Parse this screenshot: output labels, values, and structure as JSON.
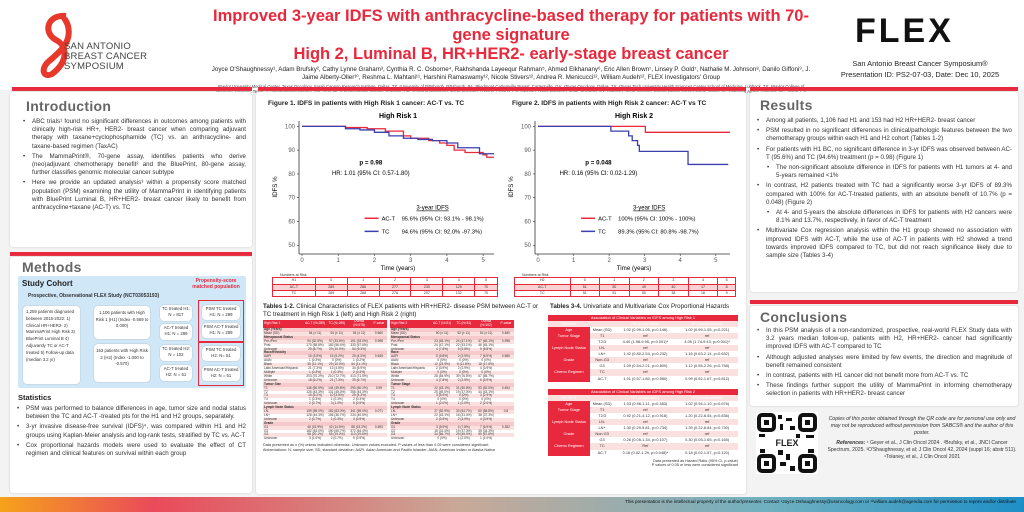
{
  "header": {
    "title_line1": "Improved 3-year IDFS with anthracycline-based therapy for patients with 70-gene signature",
    "title_line2": "High 2, Luminal B, HR+HER2- early-stage breast cancer",
    "authors": "Joyce O'Shaughnessy¹, Adam Brufsky², Cathy Lynne Graham³, Cynthia R. C. Osborne⁴, Rakhshanda Layeequr Rahman⁵, Ahmed Elkhanany⁶, Eric Allen Brown⁷, Linsey P. Gold⁷, Nathalie M. Johnson⁸, Danilo Giffoni⁹, J. Jaime Alberty-Oller¹⁰, Reshma L. Mahtani¹¹, Harshini Ramaswamy¹², Nicole Stivers¹², Andrea R. Menicucci¹², William Audeh¹², FLEX Investigators' Group",
    "affiliations": "¹Baylor University Medical Center, Texas Oncology, Sarah Cannon Research Institute, Dallas, TX; ²University of Pittsburgh, Pittsburgh, PA; ³Piedmont Cartersville Breast, Cartersville, GA; ⁴Texas Oncology, Dallas, TX; ⁵Texas Tech University Health Sciences Center School of Medicine, Lubbock, TX; ⁶Baylor College of Medicine, Houston, Texas; ⁷Comprehensive Breast Care, Troy, MI; ⁸Legacy Health System, Portland, OR; ⁹London Regional Cancer Program, London, Ontario, CA; ¹⁰Kings County Hospital Center, Brooklyn, NY; ¹¹Miami Cancer Institute, Baptist Health South Florida, Miami, FL; ¹²Medical Affairs, Agendia, Inc., Irvine, CA",
    "left_logo_text": "SAN ANTONIO BREAST CANCER SYMPOSIUM",
    "right_logo_text": "FLEX",
    "conference": "San Antonio Breast Cancer Symposium®",
    "presentation": "Presentation ID: PS2-07-03, Date: Dec 10, 2025",
    "brand_red": "#e8283c"
  },
  "intro": {
    "title": "Introduction",
    "bullets": [
      "ABC trials¹ found no significant differences in outcomes among patients with clinically high-risk HR+, HER2- breast cancer when comparing adjuvant therapy with taxane+cyclophosphamide (TC) vs. an anthracycline- and taxane-based regimen (TaxAC)",
      "The MammaPrint®, 70-gene assay, identifies patients who derive (neo)adjuvant chemotherapy benefit² and the BluePrint, 80-gene assay, further classifies genomic molecular cancer subtype",
      "Here we provide an updated analysis³ within a propensity score matched population (PSM) examining the utility of MammaPrint in identifying patients with BluePrint Luminal B, HR+HER2- breast cancer likely to benefit from anthracycline+taxane (AC-T) vs. TC"
    ]
  },
  "methods": {
    "title": "Methods",
    "cohort_title": "Study Cohort",
    "study": "Prospective, Observational FLEX Study (NCT03053193)",
    "psm_label": "Propensity-score matched population",
    "criteria": "1,259 patients diagnosed between 2015-2022: 1) Clinical HR+HER2- 2) MammaPrint High Risk 3) BluePrint Luminal B 4) Adjuvantly TC or AC-T treated 5) Follow-up data (median 3.2 yr)",
    "h1": "1,106 patients with High Risk 1 (H1) (Index -0.569 to 0.000)",
    "h2": "153 patients with High Risk 2 (H2) (Index -1.000 to -0.570)",
    "h1_tc": "TC treated H1: N = 817",
    "h1_act": "AC-T treated H1: N = 289",
    "h2_tc": "TC treated H2: N = 102",
    "h2_act": "AC-T treated H2: N = 51",
    "psm_h1_tc": "PSM TC treated H1: N = 289",
    "psm_h1_act": "PSM AC-T treated H1: N = 289",
    "psm_h2_tc": "PSM TC treated H2: N= 51",
    "psm_h2_act": "PSM AC-T treated H2: N = 51",
    "stats_title": "Statistics",
    "stats": [
      "PSM was performed to balance differences in age, tumor size and nodal status between the TC and AC-T -treated pts for the H1 and H2 groups, separately.",
      "3-yr invasive disease-free survival (IDFS)⁴, was compared within H1 and H2 groups using Kaplan-Meier analysis and log-rank tests, stratified by TC vs. AC-T",
      "Cox proportional hazards models were used to evaluate the effect of CT regimen and clinical features on survival within each group"
    ]
  },
  "chart_data": [
    {
      "type": "line",
      "figure_title": "Figure 1. IDFS in patients with High Risk 1 cancer: AC-T vs. TC",
      "title": "High Risk 1",
      "xlabel": "Time (years)",
      "ylabel": "IDFS %",
      "xlim": [
        0,
        5.3
      ],
      "ylim": [
        48,
        101
      ],
      "xticks": [
        0,
        1,
        2,
        3,
        4,
        5
      ],
      "yticks": [
        50,
        60,
        70,
        80,
        90,
        100
      ],
      "p_value": "p = 0.98",
      "hr": "HR: 1.01 (95% CI: 0.57-1.80)",
      "legend_title": "3-year IDFS",
      "series": [
        {
          "name": "AC-T",
          "label": "95.6% (95% CI: 93.1% - 98.1%)",
          "color": "#e8283c",
          "x": [
            0,
            0.8,
            1.2,
            1.8,
            2.3,
            2.8,
            3.0,
            3.5,
            3.8,
            4.0,
            4.2,
            4.5,
            4.8,
            5.0,
            5.1,
            5.3
          ],
          "y": [
            100,
            100,
            99.5,
            99,
            98,
            96,
            95,
            94,
            93,
            92,
            90,
            89,
            89,
            88,
            87,
            87
          ]
        },
        {
          "name": "TC",
          "label": "94.6% (95% CI: 92.0% -97.3%)",
          "color": "#3b3fb0",
          "x": [
            0,
            1.0,
            1.2,
            1.6,
            2.0,
            2.4,
            2.8,
            3.2,
            3.6,
            4.0,
            4.3,
            4.8,
            4.9,
            5.3
          ],
          "y": [
            100,
            100,
            99,
            98.5,
            97.5,
            96,
            95,
            94.5,
            94,
            93,
            91,
            91,
            88.5,
            88.5
          ]
        }
      ],
      "risk_table": {
        "caption": "Numbers at Risk",
        "header": [
          "H1",
          "0",
          "1",
          "2",
          "3",
          "4",
          "5"
        ],
        "rows": [
          [
            "AC-T",
            "289",
            "286",
            "277",
            "230",
            "129",
            "70"
          ],
          [
            "TC",
            "289",
            "288",
            "276",
            "207",
            "132",
            "70"
          ]
        ]
      }
    },
    {
      "type": "line",
      "figure_title": "Figure 2.  IDFS in patients with High Risk 2 cancer: AC-T vs TC",
      "title": "High Risk 2",
      "xlabel": "Time (years)",
      "ylabel": "IDFS %",
      "xlim": [
        0,
        5.4
      ],
      "ylim": [
        48,
        101
      ],
      "xticks": [
        0,
        1,
        2,
        3,
        4,
        5
      ],
      "yticks": [
        50,
        60,
        70,
        80,
        90,
        100
      ],
      "p_value": "p = 0.048",
      "hr": "HR: 0.16 (95% CI: 0.02-1.29)",
      "legend_title": "3-year IDFS",
      "series": [
        {
          "name": "AC-T",
          "label": "100% (95% CI: 100% - 100%)",
          "color": "#e8283c",
          "x": [
            0,
            3.02,
            3.02,
            5.4
          ],
          "y": [
            100,
            100,
            97.5,
            97.5
          ]
        },
        {
          "name": "TC",
          "label": "89.3% (95% CI: 80.8% -98.7%)",
          "color": "#3b3fb0",
          "x": [
            0,
            2.05,
            2.05,
            2.5,
            2.55,
            2.65,
            2.8,
            2.85,
            4.2,
            4.22,
            5.35
          ],
          "y": [
            100,
            100,
            98,
            98,
            96,
            94,
            92,
            89.5,
            89.5,
            84,
            84
          ]
        }
      ],
      "risk_table": {
        "caption": "Numbers at Risk",
        "header": [
          "H2",
          "0",
          "1",
          "2",
          "3",
          "4",
          "5"
        ],
        "rows": [
          [
            "AC-T",
            "51",
            "50",
            "49",
            "40",
            "17",
            "8"
          ],
          [
            "TC",
            "51",
            "51",
            "50",
            "38",
            "16",
            "9"
          ]
        ]
      }
    }
  ],
  "tables12": {
    "title_bold": "Tables 1-2.",
    "title": " Clinical Characteristics of FLEX patients with HR+HER2- disease PSM between AC-T or TC treatment in High Risk 1 (left) and High Risk 2 (right)",
    "t1": [
      [
        "High Risk 1",
        "AC-T (N=289)",
        "TC (N=289)",
        "Overall (N=578)",
        "P-value"
      ],
      [
        "Age (Years)"
      ],
      [
        "Mean (SD)",
        "54 (± 11)",
        "54 (± 11)",
        "54 (± 11)",
        "0.660"
      ],
      [
        "Menopausal Status"
      ],
      [
        "Pre-/Peri",
        "94 (32.5%)",
        "97 (33.6%)",
        "191 (33.0%)",
        "0.998"
      ],
      [
        "Post",
        "170 (58.8%)",
        "163 (56.4%)",
        "333 (57.6%)",
        ""
      ],
      [
        "Unknown",
        "25 (8.7%)",
        "29 (10.0%)",
        "54 (9.3%)",
        ""
      ],
      [
        "Race/Ethnicity"
      ],
      [
        "AAPI",
        "10 (3.5%)",
        "15 (5.2%)",
        "25 (4.3%)",
        "0.645"
      ],
      [
        "AIAN",
        "1 (0.3%)",
        "0 (0%)",
        "1 (0.2%)",
        ""
      ],
      [
        "Black",
        "35 (12.1%)",
        "29 (10.0%)",
        "64 (11.1%)",
        ""
      ],
      [
        "Latin American/Hispanic",
        "21 (7.3%)",
        "13 (4.5%)",
        "34 (5.9%)",
        ""
      ],
      [
        "Multiple",
        "1 (0.3%)",
        "1 (0.3%)",
        "2 (0.3%)",
        ""
      ],
      [
        "White",
        "203 (70.2%)",
        "210 (72.7%)",
        "413 (71.5%)",
        ""
      ],
      [
        "Unknown",
        "18 (6.2%)",
        "21 (7.3%)",
        "39 (6.7%)",
        ""
      ],
      [
        "Tumor Size"
      ],
      [
        "T1",
        "146 (50.5%)",
        "144 (49.8%)",
        "290 (50.2%)",
        "0.99"
      ],
      [
        "T2",
        "125 (43.3%)",
        "131 (45.3%)",
        "256 (44.3%)",
        ""
      ],
      [
        "T3",
        "15 (5.2%)",
        "10 (3.5%)",
        "25 (4.3%)",
        ""
      ],
      [
        "T4",
        "1 (0.3%)",
        "1 (0.3%)",
        "2 (0.3%)",
        ""
      ],
      [
        "Unknown",
        "2 (0.7%)",
        "3 (1.0%)",
        "5 (0.9%)",
        ""
      ],
      [
        "Lymph Node Status"
      ],
      [
        "LN-",
        "159 (55.0%)",
        "182 (63.0%)",
        "341 (59.0%)",
        "0.071"
      ],
      [
        "LN+",
        "128 (44.3%)",
        "106 (36.7%)",
        "234 (40.5%)",
        ""
      ],
      [
        "Unknown",
        "2 (0.7%)",
        "1 (0.3%)",
        "3 (0.5%)",
        ""
      ],
      [
        "Grade"
      ],
      [
        "G1",
        "46 (15.9%)",
        "42 (14.5%)",
        "88 (15.2%)",
        "0.693"
      ],
      [
        "G2",
        "182 (63.0%)",
        "190 (65.7%)",
        "372 (64.4%)",
        ""
      ],
      [
        "G3",
        "58 (20.1%)",
        "55 (19.0%)",
        "113 (19.6%)",
        ""
      ],
      [
        "Unknown",
        "3 (1.0%)",
        "2 (0.7%)",
        "5 (0.9%)",
        ""
      ]
    ],
    "t2": [
      [
        "High Risk 2",
        "AC-T (N=51)",
        "TC (N=51)",
        "Overall (N=102)",
        "P-value"
      ],
      [
        "Age (Years)"
      ],
      [
        "Mean (SD)",
        "50 (± 11)",
        "52 (± 11)",
        "51 (± 11)",
        "0.480"
      ],
      [
        "Menopausal Status"
      ],
      [
        "Pre-/Peri",
        "23 (45.1%)",
        "24 (47.1%)",
        "47 (46.1%)",
        "0.998"
      ],
      [
        "Post",
        "24 (47.1%)",
        "22 (43.1%)",
        "46 (45.1%)",
        ""
      ],
      [
        "Unknown",
        "4 (7.8%)",
        "5 (9.8%)",
        "9 (8.8%)",
        ""
      ],
      [
        "Race"
      ],
      [
        "AAPI",
        "5 (9.8%)",
        "2 (3.9%)",
        "7 (6.9%)",
        "0.565"
      ],
      [
        "AIAN",
        "0 (0%)",
        "0 (0%)",
        "0 (0%)",
        ""
      ],
      [
        "Black",
        "12 (23.5%)",
        "6 (11.8%)",
        "18 (17.6%)",
        ""
      ],
      [
        "Latin American/Hispanic",
        "2 (3.9%)",
        "2 (3.9%)",
        "4 (3.9%)",
        ""
      ],
      [
        "Multiple",
        "0 (0%)",
        "0 (0%)",
        "0 (0%)",
        ""
      ],
      [
        "White",
        "28 (54.9%)",
        "39 (76.5%)",
        "67 (65.7%)",
        ""
      ],
      [
        "Unknown",
        "4 (7.8%)",
        "2 (3.9%)",
        "6 (5.9%)",
        ""
      ],
      [
        "Tumor Stage"
      ],
      [
        "T1",
        "22 (43.1%)",
        "31 (60.8%)",
        "53 (52.0%)",
        "0.454"
      ],
      [
        "T2",
        "25 (49.0%)",
        "19 (37.3%)",
        "44 (43.1%)",
        ""
      ],
      [
        "T3",
        "3 (5.9%)",
        "0 (0%)",
        "3 (2.9%)",
        ""
      ],
      [
        "T4",
        "0 (0%)",
        "0 (0%)",
        "0 (0%)",
        ""
      ],
      [
        "Unknown",
        "1 (2.0%)",
        "1 (2.0%)",
        "2 (2.0%)",
        ""
      ],
      [
        "Lymph Node Status"
      ],
      [
        "LN-",
        "27 (52.9%)",
        "33 (64.7%)",
        "60 (58.8%)",
        "0.8"
      ],
      [
        "LN+",
        "22 (43.1%)",
        "16 (31.4%)",
        "38 (37.3%)",
        ""
      ],
      [
        "Unknown",
        "2 (3.9%)",
        "2 (3.9%)",
        "4 (3.9%)",
        ""
      ],
      [
        "Grade"
      ],
      [
        "G1",
        "3 (5.9%)",
        "4 (7.8%)",
        "7 (6.9%)",
        "0.352"
      ],
      [
        "G2",
        "16 (31.4%)",
        "19 (37.3%)",
        "35 (34.3%)",
        ""
      ],
      [
        "G3",
        "34 (66.7%)",
        "25 (49.0%)",
        "59 (57.8%)",
        ""
      ],
      [
        "Unknown",
        "0 (0%)",
        "1 (2.0%)",
        "1 (1.0%)",
        ""
      ]
    ],
    "note1": "Data presented as n (%) unless indicated otherwise. Unknown values excluded. P values of less than 0.05  were considered significant.",
    "note2": "Abbreviations:  N, sample size; SD, standard deviation; AAPI, Asian American and Pacific Islander; AIAN, American Indian or Alaska Native"
  },
  "tables34": {
    "title_bold": "Tables 3-4.",
    "title": " Univariate and Multivariate Cox Proportional Hazards",
    "t3_caption": "Association of Clinical Variables on IDFS among High Risk 1",
    "t3": [
      [
        "Variable",
        "",
        "HR (univariable)",
        "HR (multivariable)"
      ],
      [
        "Age",
        "Mean (SD)",
        "1.02 (0.99-1.05, p=0.146)",
        "1.02 (0.99-1.05, p=0.221)"
      ],
      [
        "Tumor Stage",
        "T1",
        "ref",
        "ref"
      ],
      [
        "",
        "T2/3",
        "4.40 (1.98-9.95, p<0.001)*",
        "4.05 (1.74-9.43, p=0.001)*"
      ],
      [
        "Lymph Node Status",
        "LN-",
        "ref",
        "ref"
      ],
      [
        "",
        "LN+",
        "1.42 (0.80-2.54, p=0.232)",
        "1.16 (0.63-2.14, p=0.632)"
      ],
      [
        "Grade",
        "Non-G3",
        "ref",
        "ref"
      ],
      [
        "",
        "G3",
        "1.09 (0.54-2.21, p=0.800)",
        "1.12 (0.55-2.26, p=0.758)"
      ],
      [
        "Chemo Regimen",
        "TC",
        "ref",
        "ref"
      ],
      [
        "",
        "AC-T",
        "1.01 (0.57-1.80, p=0.980)",
        "0.99 (0.52-1.67, p=0.812)"
      ]
    ],
    "t4_caption": "Association of Clinical Variables on IDFS among High Risk 2",
    "t4": [
      [
        "H2 IDFS",
        "",
        "HR (univariable)",
        "HR (multivariable)"
      ],
      [
        "Age",
        "Mean (SD)",
        "1.03 (0.96-1.11, p=0.383)",
        "1.02 (0.94-1.10, p=0.676)"
      ],
      [
        "Tumor Stage",
        "T1",
        "ref",
        "ref"
      ],
      [
        "",
        "T2/3",
        "0.92 (0.21-4.12, p=0.916)",
        "1.20 (0.22-6.54, p=0.836)"
      ],
      [
        "Lymph Node Status",
        "LN-",
        "ref",
        "ref"
      ],
      [
        "",
        "LN+",
        "1.30 (0.29-5.81, p=0.734)",
        "1.39 (0.22-8.84, p=0.730)"
      ],
      [
        "Grade",
        "Non G3",
        "ref",
        "ref"
      ],
      [
        "",
        "G3",
        "0.26 (0.05-1.34, p=0.107)",
        "0.30 (0.05-1.65, p=0.165)"
      ],
      [
        "Chemo Regimen",
        "TC",
        "Ref",
        "ref"
      ],
      [
        "",
        "AC-T",
        "0.16 (0.02-1.29, p=0.048)*",
        "0.18 (0.02-1.57, p=0.120)"
      ]
    ],
    "note1": "Data presented as Hazard Ratio (95% CI, p-value)",
    "note2": "P values of 0.05 or less were considered significant"
  },
  "results": {
    "title": "Results",
    "bullets": [
      {
        "t": "Among all patients, 1,106 had H1 and 153 had H2 HR+HER2- breast cancer"
      },
      {
        "t": "PSM resulted in no significant differences in clinical/pathologic features between the two chemotherapy groups within each H1 and H2 cohort (Tables 1-2)"
      },
      {
        "t": "For patients with H1 BC, no significant difference in 3-yr IDFS was observed between AC-T (95.6%) and TC (94.6%) treatment (p = 0.98) (Figure 1)"
      },
      {
        "t": "The non-significant absolute difference in IDFS for patients with H1 tumors at 4- and 5-years remained <1%",
        "sub": true
      },
      {
        "t": "In contrast, H2 patients treated with TC had a significantly worse 3-yr IDFS of 89.3% compared with 100% for AC-T-treated patients, with an absolute benefit of 10.7% (p = 0.048) (Figure 2)"
      },
      {
        "t": "At 4- and 5-years the absolute differences in IDFS for patients with H2 cancers were 8.1% and 13.7%, respectively, in favor of AC-T treatment",
        "sub": true
      },
      {
        "t": "Multivariate Cox regression analysis within the H1 group showed no association with improved IDFS with AC-T, while the use of AC-T in patients with H2 showed a trend towards improved IDFS compared to TC, but did not reach significance likely due to sample size (Tables 3-4)"
      }
    ]
  },
  "conclusions": {
    "title": "Conclusions",
    "bullets": [
      "In this PSM analysis of a non-randomized, prospective, real-world FLEX Study data with 3.2 years median follow-up, patients with H2, HR+HER2- cancer had significantly improved IDFS with AC-T compared to TC",
      "Although adjusted analyses were limited by few events, the direction and magnitude of benefit remained consistent",
      "In contrast, patients with H1 cancer did not benefit more from AC-T vs. TC",
      "These findings further support the utility of MammaPrint in informing chemotherapy selection in patients with HR+HER2- breast cancer"
    ]
  },
  "qr": {
    "logo_text": "FLEX",
    "copy_note": "Copies of this poster obtained through the QR code are for personal use only and may not be reproduced without permission from SABCS® and the author of this poster.",
    "refs_label": "References:",
    "refs": " ¹ Geyer et al., J Clin Oncol 2024 . ²Brufsky, et al., JNCI Cancer Spectrum, 2025. ³O'Shaughnessy, et al; J Clin Oncol 42, 2024 (suppl 16; abstr 511). ⁴Tolaney, et al., J Clin Oncol 2021"
  },
  "footer": {
    "text": "This presentation is the intellectual property of the author/presenter. Contact ¹Joyce.Oshaughnessy@usoncology.com or ¹²william.audeh@agendia.com for permission to reprint and/or distribute"
  }
}
